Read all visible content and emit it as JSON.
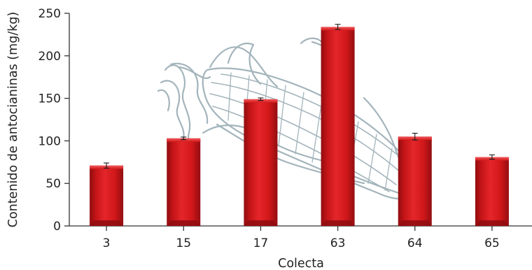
{
  "chart_data": {
    "type": "bar",
    "xlabel": "Colecta",
    "ylabel": "Contenido de antocianinas (mg/kg)",
    "categories": [
      "3",
      "15",
      "17",
      "63",
      "64",
      "65"
    ],
    "values": [
      71,
      103,
      149,
      234,
      105,
      81
    ],
    "errors": [
      3,
      1.5,
      1.5,
      3,
      4,
      2.5
    ],
    "ylim": [
      0,
      250
    ],
    "yticks": [
      "0",
      "50",
      "100",
      "150",
      "200",
      "250"
    ],
    "grid": false,
    "legend": "none",
    "colors": {
      "bar": "#d4161a",
      "bar_dark": "#8f0d10",
      "bar_light": "#ec3a3c",
      "axis": "#333333",
      "illustration": "#9fb1b8"
    },
    "background_illustration": "corn-cob"
  }
}
